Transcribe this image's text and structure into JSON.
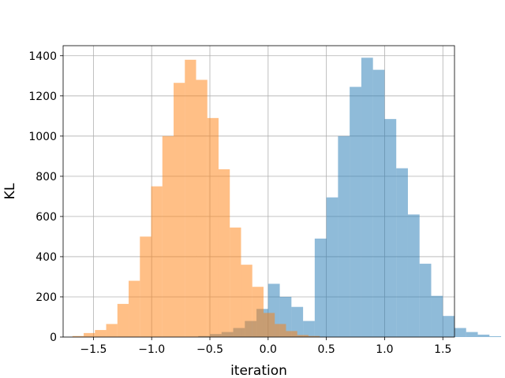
{
  "chart_data": {
    "type": "histogram",
    "title": "",
    "xlabel": "iteration",
    "ylabel": "KL",
    "xlim": [
      -1.76,
      1.6
    ],
    "ylim": [
      0,
      1450
    ],
    "x_ticks": [
      -1.5,
      -1.0,
      -0.5,
      0.0,
      0.5,
      1.0,
      1.5
    ],
    "x_tick_labels": [
      "−1.5",
      "−1.0",
      "−0.5",
      "0.0",
      "0.5",
      "1.0",
      "1.5"
    ],
    "y_ticks": [
      0,
      200,
      400,
      600,
      800,
      1000,
      1200,
      1400
    ],
    "y_tick_labels": [
      "0",
      "200",
      "400",
      "600",
      "800",
      "1000",
      "1200",
      "1400"
    ],
    "grid": true,
    "bar_alpha": 0.5,
    "series": [
      {
        "color": "#1f77b4",
        "bin_start": -0.6,
        "bin_width": 0.1,
        "values": [
          5,
          15,
          25,
          45,
          80,
          140,
          265,
          200,
          150,
          80,
          490,
          695,
          1000,
          1245,
          1390,
          1330,
          1085,
          840,
          610,
          365,
          205,
          105,
          45,
          25,
          12,
          4
        ]
      },
      {
        "color": "#ff7f0e",
        "bin_start": -1.68,
        "bin_width": 0.0965,
        "values": [
          5,
          20,
          35,
          65,
          165,
          280,
          500,
          750,
          1000,
          1265,
          1380,
          1280,
          1090,
          835,
          545,
          360,
          250,
          120,
          65,
          30,
          10,
          5
        ]
      }
    ]
  }
}
